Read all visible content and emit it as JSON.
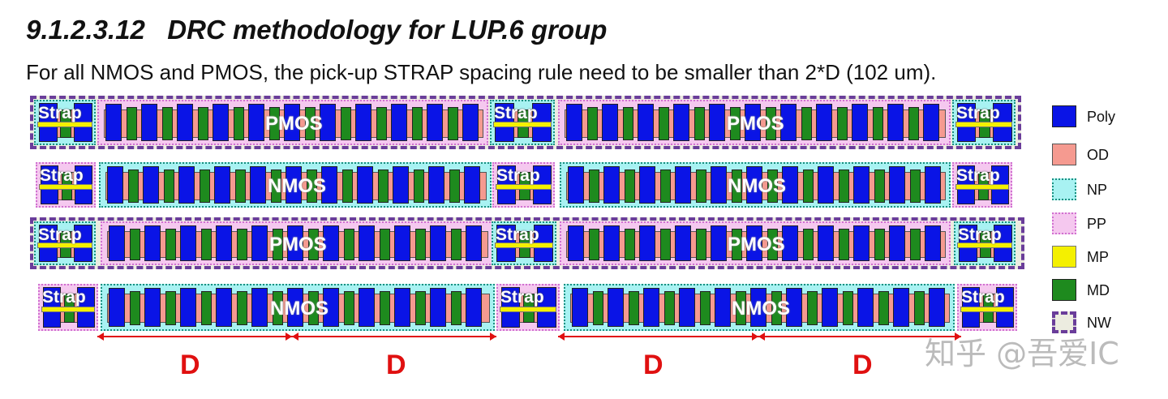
{
  "title": "9.1.2.3.12   DRC methodology for LUP.6 group",
  "subtitle": "For all NMOS and PMOS, the pick-up STRAP spacing rule need to be smaller than 2*D (102 um).",
  "strap_label": "Strap",
  "rows": [
    {
      "type": "PMOS",
      "nwell": true
    },
    {
      "type": "NMOS",
      "nwell": false
    },
    {
      "type": "PMOS",
      "nwell": true
    },
    {
      "type": "NMOS",
      "nwell": false
    }
  ],
  "dimension_labels": [
    "D",
    "D",
    "D",
    "D"
  ],
  "legend": [
    {
      "label": "Poly",
      "color": "#0a14e6"
    },
    {
      "label": "OD",
      "color": "#f59a90"
    },
    {
      "label": "NP",
      "color": "#a8f2f2"
    },
    {
      "label": "PP",
      "color": "#f5c8ef"
    },
    {
      "label": "MP",
      "color": "#f4f000"
    },
    {
      "label": "MD",
      "color": "#1e8a1e"
    },
    {
      "label": "NW",
      "color": "#ecece0"
    }
  ],
  "watermark": "知乎 @吾爱IC"
}
